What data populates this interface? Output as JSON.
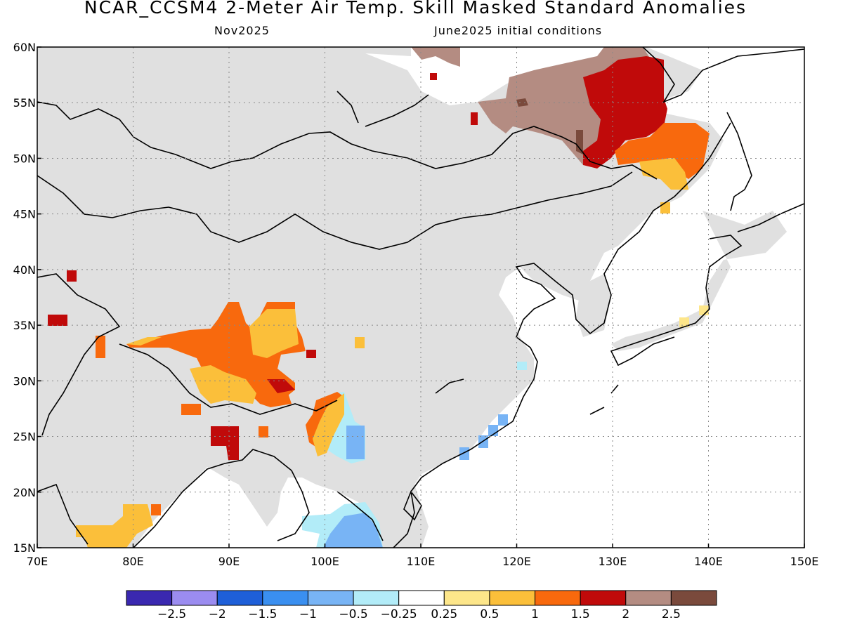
{
  "title": "NCAR_CCSM4 2-Meter Air Temp. Skill Masked Standard Anomalies",
  "subtitle_left": "Nov2025",
  "subtitle_right": "June2025 initial conditions",
  "map": {
    "lon_range": [
      70,
      150
    ],
    "lat_range": [
      15,
      60
    ],
    "lon_ticks": [
      "70E",
      "80E",
      "90E",
      "100E",
      "110E",
      "120E",
      "130E",
      "140E",
      "150E"
    ],
    "lat_ticks": [
      "15N",
      "20N",
      "25N",
      "30N",
      "35N",
      "40N",
      "45N",
      "50N",
      "55N",
      "60N"
    ],
    "masked_land_color": "#e0e0e0",
    "gridlines": "dotted"
  },
  "colorbar": {
    "colors": [
      "#3a28b0",
      "#9b8cf0",
      "#1e5fd8",
      "#3a8ff0",
      "#78b4f5",
      "#b2ecf8",
      "#ffffff",
      "#fde68a",
      "#fbbf3a",
      "#f8690d",
      "#c00a0a",
      "#b48c82",
      "#7a4a3c"
    ],
    "labels": [
      "−2.5",
      "−2",
      "−1.5",
      "−1",
      "−0.5",
      "−0.25",
      "0.25",
      "0.5",
      "1",
      "1.5",
      "2",
      "2.5"
    ]
  },
  "anomaly_regions": [
    {
      "name": "far-east-russia-warm",
      "lon": [
        126,
        140
      ],
      "lat": [
        46,
        60
      ],
      "level": "1.5 to 2+"
    },
    {
      "name": "tibet-warm",
      "lon": [
        79,
        99
      ],
      "lat": [
        27,
        37
      ],
      "level": "0.5 to 2"
    },
    {
      "name": "indochina-cool",
      "lon": [
        98,
        106
      ],
      "lat": [
        15,
        25
      ],
      "level": "-1 to -0.25"
    },
    {
      "name": "india-warm",
      "lon": [
        74,
        83
      ],
      "lat": [
        15,
        19
      ],
      "level": "0.5 to 1"
    }
  ]
}
